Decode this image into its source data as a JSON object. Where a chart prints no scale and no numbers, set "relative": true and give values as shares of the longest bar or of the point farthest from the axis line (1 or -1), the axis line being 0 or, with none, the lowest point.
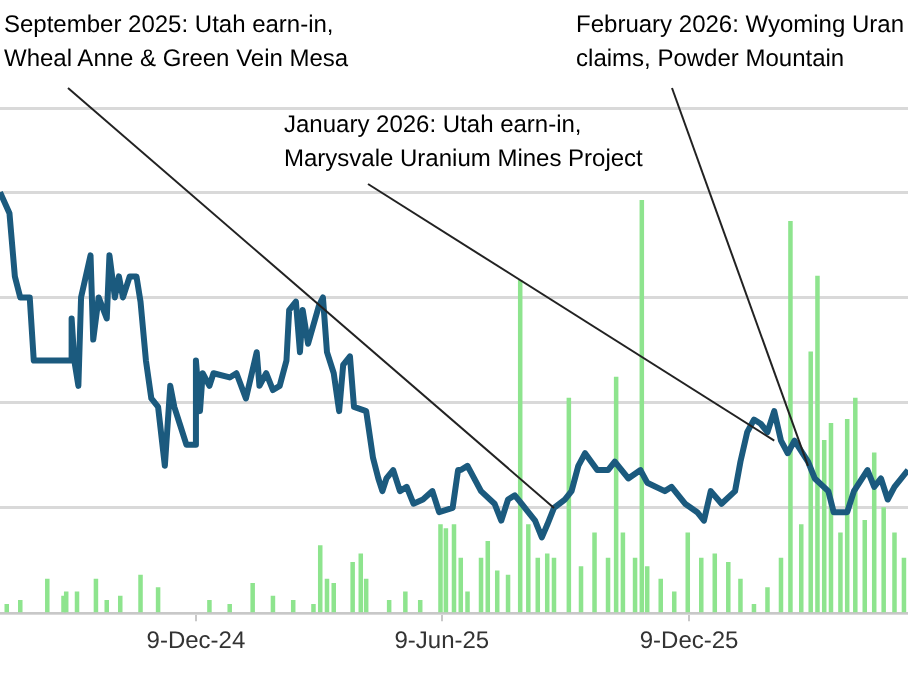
{
  "chart_data": {
    "type": "line",
    "relative": true,
    "grid": "y",
    "xlim": [
      "2024-07-17",
      "2026-05-20"
    ],
    "xticks": [
      {
        "value": "2024-12-09",
        "label": "9-Dec-24"
      },
      {
        "value": "2025-06-09",
        "label": "9-Jun-25"
      },
      {
        "value": "2025-12-09",
        "label": "9-Dec-25"
      }
    ],
    "series": [
      {
        "color": "#1b5a7e",
        "x": [
          "2024-07-17",
          "2024-07-24",
          "2024-07-28",
          "2024-08-01",
          "2024-08-08",
          "2024-08-11",
          "2024-09-07",
          "2024-09-08",
          "2024-09-10",
          "2024-09-13",
          "2024-09-15",
          "2024-09-22",
          "2024-09-24",
          "2024-09-28",
          "2024-10-04",
          "2024-10-06",
          "2024-10-10",
          "2024-10-13",
          "2024-10-16",
          "2024-10-21",
          "2024-10-26",
          "2024-10-29",
          "2024-11-02",
          "2024-11-06",
          "2024-11-11",
          "2024-11-16",
          "2024-11-20",
          "2024-11-23",
          "2024-11-27",
          "2024-12-02",
          "2024-12-08",
          "2024-12-09",
          "2024-12-12",
          "2024-12-14",
          "2024-12-19",
          "2024-12-22",
          "2025-01-03",
          "2025-01-08",
          "2025-01-15",
          "2025-01-23",
          "2025-01-25",
          "2025-01-30",
          "2025-02-04",
          "2025-02-09",
          "2025-02-14",
          "2025-02-16",
          "2025-02-21",
          "2025-02-24",
          "2025-02-26",
          "2025-03-02",
          "2025-03-10",
          "2025-03-13",
          "2025-03-16",
          "2025-03-21",
          "2025-03-25",
          "2025-03-28",
          "2025-04-02",
          "2025-04-05",
          "2025-04-14",
          "2025-04-19",
          "2025-04-23",
          "2025-04-26",
          "2025-04-29",
          "2025-05-04",
          "2025-05-09",
          "2025-05-14",
          "2025-05-19",
          "2025-05-26",
          "2025-06-02",
          "2025-06-07",
          "2025-06-17",
          "2025-06-21",
          "2025-06-23",
          "2025-06-28",
          "2025-07-08",
          "2025-07-18",
          "2025-07-23",
          "2025-07-28",
          "2025-08-02",
          "2025-08-07",
          "2025-08-17",
          "2025-08-22",
          "2025-08-26",
          "2025-08-31",
          "2025-09-08",
          "2025-09-13",
          "2025-09-18",
          "2025-09-23",
          "2025-10-02",
          "2025-10-10",
          "2025-10-15",
          "2025-10-25",
          "2025-11-03",
          "2025-11-08",
          "2025-11-21",
          "2025-11-26",
          "2025-12-06",
          "2025-12-15",
          "2025-12-20",
          "2025-12-25",
          "2026-01-02",
          "2026-01-12",
          "2026-01-16",
          "2026-01-21",
          "2026-01-26",
          "2026-01-31",
          "2026-02-05",
          "2026-02-10",
          "2026-02-15",
          "2026-02-20",
          "2026-02-25",
          "2026-03-07",
          "2026-03-12",
          "2026-03-22",
          "2026-03-26",
          "2026-04-05",
          "2026-04-10",
          "2026-04-20",
          "2026-04-25",
          "2026-04-30",
          "2026-05-05",
          "2026-05-10",
          "2026-05-20"
        ],
        "values": [
          1.0,
          0.95,
          0.8,
          0.75,
          0.75,
          0.6,
          0.6,
          0.7,
          0.6,
          0.54,
          0.75,
          0.85,
          0.65,
          0.75,
          0.7,
          0.85,
          0.75,
          0.8,
          0.75,
          0.8,
          0.8,
          0.74,
          0.6,
          0.51,
          0.49,
          0.35,
          0.54,
          0.49,
          0.45,
          0.4,
          0.4,
          0.6,
          0.48,
          0.57,
          0.54,
          0.57,
          0.56,
          0.57,
          0.51,
          0.62,
          0.54,
          0.57,
          0.53,
          0.54,
          0.6,
          0.72,
          0.74,
          0.62,
          0.72,
          0.64,
          0.73,
          0.75,
          0.62,
          0.57,
          0.48,
          0.59,
          0.61,
          0.49,
          0.48,
          0.37,
          0.32,
          0.29,
          0.32,
          0.34,
          0.29,
          0.3,
          0.26,
          0.27,
          0.29,
          0.24,
          0.25,
          0.34,
          0.34,
          0.35,
          0.29,
          0.26,
          0.22,
          0.27,
          0.28,
          0.26,
          0.22,
          0.18,
          0.21,
          0.25,
          0.27,
          0.29,
          0.35,
          0.38,
          0.34,
          0.34,
          0.36,
          0.32,
          0.34,
          0.31,
          0.29,
          0.3,
          0.26,
          0.24,
          0.22,
          0.29,
          0.26,
          0.29,
          0.36,
          0.43,
          0.46,
          0.45,
          0.43,
          0.48,
          0.41,
          0.38,
          0.41,
          0.36,
          0.32,
          0.29,
          0.24,
          0.24,
          0.29,
          0.34,
          0.3,
          0.32,
          0.27,
          0.3,
          0.34
        ]
      },
      {
        "type": "bar",
        "color": "#8ee48e",
        "x": [
          "2024-07-22",
          "2024-08-01",
          "2024-08-21",
          "2024-09-02",
          "2024-09-04",
          "2024-09-12",
          "2024-09-26",
          "2024-10-04",
          "2024-10-14",
          "2024-10-29",
          "2024-11-11",
          "2024-12-19",
          "2025-01-03",
          "2025-01-20",
          "2025-02-04",
          "2025-02-19",
          "2025-03-06",
          "2025-03-11",
          "2025-03-16",
          "2025-03-21",
          "2025-04-04",
          "2025-04-10",
          "2025-04-14",
          "2025-05-01",
          "2025-05-13",
          "2025-05-24",
          "2025-06-08",
          "2025-06-12",
          "2025-06-18",
          "2025-06-23",
          "2025-06-28",
          "2025-07-08",
          "2025-07-13",
          "2025-07-20",
          "2025-07-28",
          "2025-08-06",
          "2025-08-12",
          "2025-08-19",
          "2025-08-26",
          "2025-08-31",
          "2025-09-11",
          "2025-09-20",
          "2025-09-30",
          "2025-10-10",
          "2025-10-16",
          "2025-10-21",
          "2025-10-30",
          "2025-11-04",
          "2025-11-08",
          "2025-11-18",
          "2025-11-28",
          "2025-12-08",
          "2025-12-18",
          "2025-12-28",
          "2026-01-07",
          "2026-01-16",
          "2026-01-26",
          "2026-02-05",
          "2026-02-15",
          "2026-02-22",
          "2026-03-02",
          "2026-03-09",
          "2026-03-14",
          "2026-03-19",
          "2026-03-24",
          "2026-03-31",
          "2026-04-05",
          "2026-04-11",
          "2026-04-18",
          "2026-04-25",
          "2026-05-02",
          "2026-05-10",
          "2026-05-17"
        ],
        "values": [
          0.02,
          0.03,
          0.08,
          0.04,
          0.05,
          0.05,
          0.08,
          0.03,
          0.04,
          0.09,
          0.06,
          0.03,
          0.02,
          0.07,
          0.04,
          0.03,
          0.02,
          0.16,
          0.08,
          0.07,
          0.12,
          0.14,
          0.08,
          0.03,
          0.05,
          0.03,
          0.21,
          0.2,
          0.21,
          0.13,
          0.05,
          0.13,
          0.17,
          0.1,
          0.09,
          0.79,
          0.21,
          0.13,
          0.14,
          0.13,
          0.51,
          0.11,
          0.19,
          0.13,
          0.56,
          0.19,
          0.13,
          0.98,
          0.11,
          0.08,
          0.05,
          0.19,
          0.13,
          0.14,
          0.12,
          0.08,
          0.02,
          0.06,
          0.13,
          0.93,
          0.21,
          0.62,
          0.8,
          0.41,
          0.45,
          0.19,
          0.46,
          0.51,
          0.22,
          0.38,
          0.25,
          0.19,
          0.13
        ]
      }
    ],
    "annotations": [
      {
        "text": "September 2025: Utah earn-in,\nWheal Anne & Green Vein Mesa",
        "x": "2025-08-31",
        "y": 0.25
      },
      {
        "text": "January 2026: Utah earn-in,\nMarysvale Uranium Mines Project",
        "x": "2026-02-10",
        "y": 0.41
      },
      {
        "text": "February 2026: Wyoming Uran\nclaims, Powder Mountain",
        "x": "2026-03-07",
        "y": 0.35
      }
    ]
  }
}
